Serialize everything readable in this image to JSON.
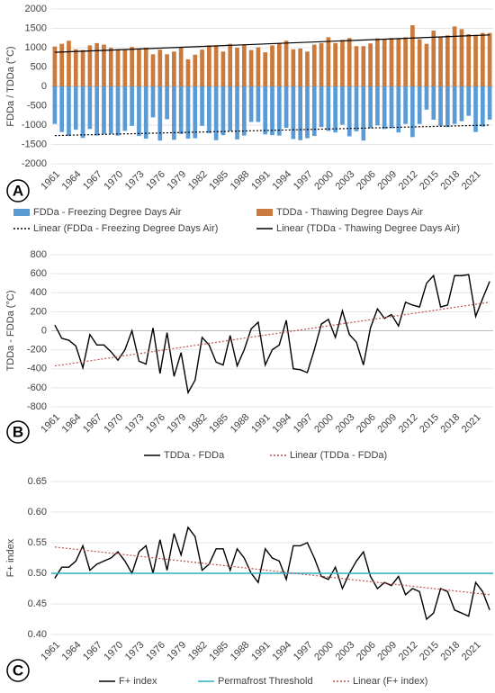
{
  "chart_data": [
    {
      "type": "bar",
      "panel_label": "A",
      "ylabel": "FDDa / TDDa (°C)",
      "categories": [
        "1961",
        null,
        null,
        "1964",
        null,
        null,
        "1967",
        null,
        null,
        "1970",
        null,
        null,
        "1973",
        null,
        null,
        "1976",
        null,
        null,
        "1979",
        null,
        null,
        "1982",
        null,
        null,
        "1985",
        null,
        null,
        "1988",
        null,
        null,
        "1991",
        null,
        null,
        "1994",
        null,
        null,
        "1997",
        null,
        null,
        "2000",
        null,
        null,
        "2003",
        null,
        null,
        "2006",
        null,
        null,
        "2009",
        null,
        null,
        "2012",
        null,
        null,
        "2015",
        null,
        null,
        "2018",
        null,
        null,
        "2021",
        null,
        null
      ],
      "series": [
        {
          "name": "FDDa - Freezing Degree Days Air",
          "color": "#5b9bd5",
          "values": [
            -970,
            -1180,
            -1280,
            -1120,
            -1330,
            -1100,
            -1270,
            -1230,
            -1220,
            -1270,
            -1150,
            -1020,
            -1280,
            -1350,
            -800,
            -1400,
            -850,
            -1380,
            -1230,
            -1350,
            -1340,
            -1020,
            -1210,
            -1390,
            -1260,
            -1150,
            -1370,
            -1270,
            -920,
            -920,
            -1240,
            -1260,
            -1270,
            -1070,
            -1360,
            -1390,
            -1340,
            -1280,
            -1050,
            -1150,
            -1190,
            -990,
            -1290,
            -1160,
            -1400,
            -1080,
            -1010,
            -1100,
            -1080,
            -1190,
            -970,
            -1310,
            -970,
            -600,
            -860,
            -1020,
            -1050,
            -970,
            -900,
            -760,
            -1180,
            -1040,
            -860
          ]
        },
        {
          "name": "TDDa - Thawing Degree Days Air",
          "color": "#c97a3c",
          "values": [
            1030,
            1100,
            1180,
            960,
            940,
            1060,
            1120,
            1080,
            1000,
            960,
            950,
            1020,
            960,
            1000,
            830,
            950,
            830,
            900,
            1000,
            700,
            820,
            950,
            1060,
            1060,
            900,
            1100,
            1000,
            1070,
            940,
            1010,
            880,
            1060,
            1120,
            1180,
            960,
            980,
            900,
            1080,
            1120,
            1270,
            1120,
            1200,
            1250,
            1040,
            1040,
            1110,
            1240,
            1230,
            1250,
            1240,
            1270,
            1580,
            1220,
            1100,
            1440,
            1270,
            1320,
            1550,
            1480,
            1350,
            1330,
            1380,
            1380
          ]
        }
      ],
      "trendlines": [
        {
          "name": "Linear (FDDa - Freezing Degree Days Air)",
          "color": "#000000",
          "dash": "dotted",
          "values": [
            -1270,
            -1000
          ]
        },
        {
          "name": "Linear (TDDa - Thawing Degree Days Air)",
          "color": "#000000",
          "dash": "solid",
          "values": [
            880,
            1330
          ]
        }
      ],
      "ylim": [
        -2000,
        2000
      ],
      "yticks": [
        -2000,
        -1500,
        -1000,
        -500,
        0,
        500,
        1000,
        1500,
        2000
      ],
      "grid": true
    },
    {
      "type": "line",
      "panel_label": "B",
      "ylabel": "TDDa - FDDa (°C)",
      "categories": [
        "1961",
        null,
        null,
        "1964",
        null,
        null,
        "1967",
        null,
        null,
        "1970",
        null,
        null,
        "1973",
        null,
        null,
        "1976",
        null,
        null,
        "1979",
        null,
        null,
        "1982",
        null,
        null,
        "1985",
        null,
        null,
        "1988",
        null,
        null,
        "1991",
        null,
        null,
        "1994",
        null,
        null,
        "1997",
        null,
        null,
        "2000",
        null,
        null,
        "2003",
        null,
        null,
        "2006",
        null,
        null,
        "2009",
        null,
        null,
        "2012",
        null,
        null,
        "2015",
        null,
        null,
        "2018",
        null,
        null,
        "2021",
        null,
        null
      ],
      "series": [
        {
          "name": "TDDa - FDDa",
          "color": "#000000",
          "values": [
            60,
            -80,
            -100,
            -160,
            -390,
            -40,
            -150,
            -150,
            -220,
            -310,
            -200,
            0,
            -320,
            -350,
            30,
            -450,
            -20,
            -480,
            -230,
            -650,
            -520,
            -70,
            -150,
            -330,
            -360,
            -50,
            -370,
            -200,
            20,
            90,
            -360,
            -200,
            -150,
            110,
            -400,
            -410,
            -440,
            -200,
            70,
            120,
            -70,
            210,
            -40,
            -120,
            -360,
            30,
            230,
            130,
            170,
            50,
            300,
            270,
            250,
            500,
            580,
            250,
            270,
            580,
            580,
            590,
            150,
            340,
            520
          ]
        }
      ],
      "trendlines": [
        {
          "name": "Linear (TDDa - FDDa)",
          "color": "#c0504d",
          "dash": "dotted",
          "values": [
            -370,
            300
          ]
        }
      ],
      "ylim": [
        -800,
        800
      ],
      "yticks": [
        -800,
        -600,
        -400,
        -200,
        0,
        200,
        400,
        600,
        800
      ],
      "grid": true
    },
    {
      "type": "line",
      "panel_label": "C",
      "ylabel": "F+ index",
      "categories": [
        "1961",
        null,
        null,
        "1964",
        null,
        null,
        "1967",
        null,
        null,
        "1970",
        null,
        null,
        "1973",
        null,
        null,
        "1976",
        null,
        null,
        "1979",
        null,
        null,
        "1982",
        null,
        null,
        "1985",
        null,
        null,
        "1988",
        null,
        null,
        "1991",
        null,
        null,
        "1994",
        null,
        null,
        "1997",
        null,
        null,
        "2000",
        null,
        null,
        "2003",
        null,
        null,
        "2006",
        null,
        null,
        "2009",
        null,
        null,
        "2012",
        null,
        null,
        "2015",
        null,
        null,
        "2018",
        null,
        null,
        "2021",
        null,
        null
      ],
      "series": [
        {
          "name": "F+ index",
          "color": "#000000",
          "values": [
            0.492,
            0.51,
            0.51,
            0.52,
            0.545,
            0.505,
            0.515,
            0.52,
            0.525,
            0.535,
            0.52,
            0.5,
            0.535,
            0.545,
            0.5,
            0.555,
            0.505,
            0.565,
            0.53,
            0.575,
            0.56,
            0.505,
            0.515,
            0.54,
            0.54,
            0.505,
            0.54,
            0.525,
            0.5,
            0.485,
            0.54,
            0.525,
            0.52,
            0.49,
            0.545,
            0.545,
            0.55,
            0.525,
            0.495,
            0.49,
            0.51,
            0.475,
            0.5,
            0.52,
            0.535,
            0.495,
            0.475,
            0.485,
            0.48,
            0.495,
            0.465,
            0.475,
            0.47,
            0.425,
            0.435,
            0.475,
            0.47,
            0.44,
            0.435,
            0.43,
            0.485,
            0.47,
            0.44
          ]
        }
      ],
      "reference_lines": [
        {
          "name": "Permafrost Threshold",
          "color": "#2ab0c5",
          "value": 0.5
        }
      ],
      "trendlines": [
        {
          "name": "Linear (F+ index)",
          "color": "#c0504d",
          "dash": "dotted",
          "values": [
            0.543,
            0.465
          ]
        }
      ],
      "ylim": [
        0.4,
        0.65
      ],
      "yticks": [
        {
          "value": 0.4,
          "label": "0.40"
        },
        0.45,
        {
          "value": 0.5,
          "label": "0.50"
        },
        0.55,
        {
          "value": 0.6,
          "label": "0.60"
        },
        0.65
      ],
      "grid": true
    }
  ]
}
